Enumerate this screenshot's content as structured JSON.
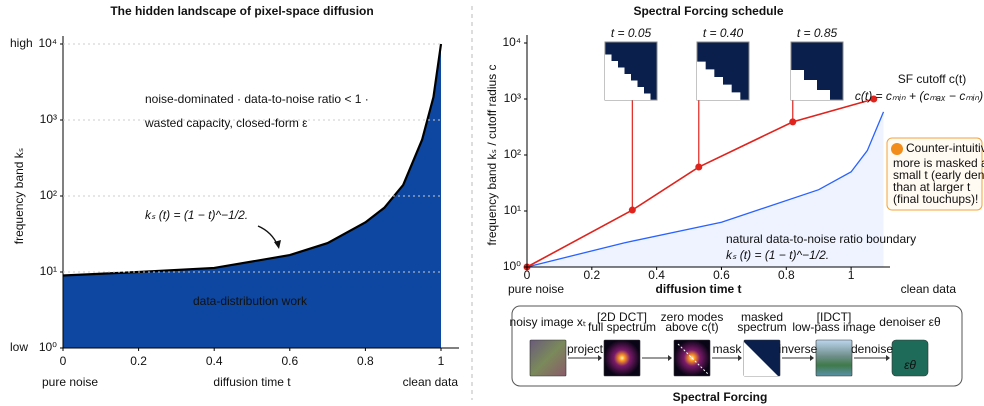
{
  "chart_data": [
    {
      "type": "area",
      "title": "The hidden landscape of pixel-space diffusion",
      "x_label": "diffusion time t",
      "y_label": "frequency band kₛ",
      "x": [
        0,
        0.2,
        0.4,
        0.6,
        0.7,
        0.8,
        0.85,
        0.9,
        0.95,
        0.98,
        1
      ],
      "values": [
        9,
        10,
        11.3,
        16.7,
        24,
        45,
        70,
        140,
        550,
        2000,
        10000
      ],
      "color": "#0d47a1",
      "line_color": "#000000",
      "xlim": [
        0,
        1
      ],
      "ylim": [
        1,
        10000
      ],
      "log_y": true,
      "grid": true,
      "xticks": [
        0,
        0.2,
        0.4,
        0.6,
        0.8,
        1
      ],
      "yticks": [
        {
          "value": 1,
          "label": "10⁰"
        },
        {
          "value": 10,
          "label": "10¹"
        },
        {
          "value": 100,
          "label": "10²"
        },
        {
          "value": 1000,
          "label": "10³"
        },
        {
          "value": 10000,
          "label": "10⁴"
        }
      ],
      "y_extreme_labels": {
        "top": "high",
        "bottom": "low"
      },
      "x_extreme_labels": {
        "left": "pure noise",
        "right": "clean data"
      },
      "annotations": [
        "noise-dominated · data-to-noise ratio < 1 ·",
        "wasted capacity, closed-form ε",
        "kₛ (t) = (1 − t)^−1/2.",
        "data-distribution work"
      ]
    },
    {
      "type": "line",
      "title": "Spectral Forcing schedule",
      "x_label": "diffusion time t",
      "y_label": "frequency band kₛ / cutoff radius c",
      "xlim": [
        0,
        1.12
      ],
      "ylim": [
        1,
        10000
      ],
      "log_y": true,
      "grid": false,
      "xticks": [
        0,
        0.2,
        0.4,
        0.6,
        0.8,
        1
      ],
      "yticks": [
        {
          "value": 1,
          "label": "10⁰"
        },
        {
          "value": 10,
          "label": "10¹"
        },
        {
          "value": 100,
          "label": "10²"
        },
        {
          "value": 1000,
          "label": "10³"
        },
        {
          "value": 10000,
          "label": "10⁴"
        }
      ],
      "series": [
        {
          "name": "SF cutoff c(t)",
          "color": "#e0231c",
          "markers": true,
          "x": [
            0,
            0.325,
            0.53,
            0.82,
            1.07
          ],
          "values": [
            1,
            10.4,
            61,
            390,
            1000
          ]
        },
        {
          "name": "natural data-to-noise ratio boundary",
          "color": "#2962ff",
          "fill": true,
          "x": [
            0,
            0.3,
            0.6,
            0.9,
            1.0,
            1.05,
            1.1
          ],
          "values": [
            1,
            2.7,
            6.3,
            24,
            50,
            120,
            590
          ]
        }
      ],
      "x_extreme_labels": {
        "left": "pure noise",
        "right": "clean data"
      },
      "annotations": [
        "c(t) = cₘᵢₙ + (cₘₐₓ − cₘᵢₙ) · t",
        "kₛ (t) = (1 − t)^−1/2."
      ],
      "snapshots": [
        {
          "label": "t = 0.05"
        },
        {
          "label": "t = 0.40"
        },
        {
          "label": "t = 0.85"
        }
      ],
      "callout": {
        "title": "Counter-intuitive:",
        "lines": [
          "more is masked at",
          "small t (early denoising)",
          "than at larger t",
          "(final touchups)!"
        ]
      }
    }
  ],
  "pipeline": {
    "title": "Spectral Forcing",
    "steps": [
      {
        "label": [
          "noisy image xₜ"
        ]
      },
      {
        "label": [
          "[2D DCT]",
          "full spectrum"
        ]
      },
      {
        "label": [
          "zero modes",
          "above c(t)"
        ]
      },
      {
        "label": [
          "masked",
          "spectrum"
        ]
      },
      {
        "label": [
          "[IDCT]",
          "low-pass image"
        ]
      },
      {
        "label": [
          "denoiser εθ"
        ],
        "icon_text": "εθ"
      }
    ],
    "arrows": [
      "project",
      "mask",
      "inverse",
      "denoise"
    ]
  }
}
